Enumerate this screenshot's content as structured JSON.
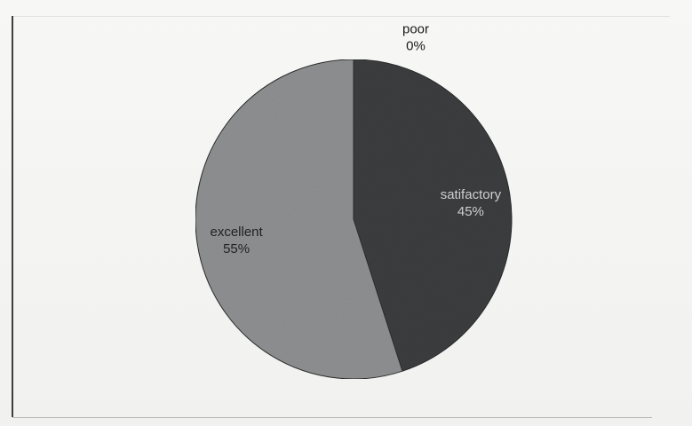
{
  "chart_data": {
    "type": "pie",
    "title": "",
    "slices": [
      {
        "label": "poor",
        "value": 0,
        "value_label": "0%",
        "color": "#3a3a3a",
        "label_color": "#1a1a1a"
      },
      {
        "label": "satifactory",
        "value": 45,
        "value_label": "45%",
        "color": "#3b3d3f",
        "label_color": "#cfcfcf"
      },
      {
        "label": "excellent",
        "value": 55,
        "value_label": "55%",
        "color": "#8e8f91",
        "label_color": "#222222"
      }
    ],
    "legend": "none"
  }
}
